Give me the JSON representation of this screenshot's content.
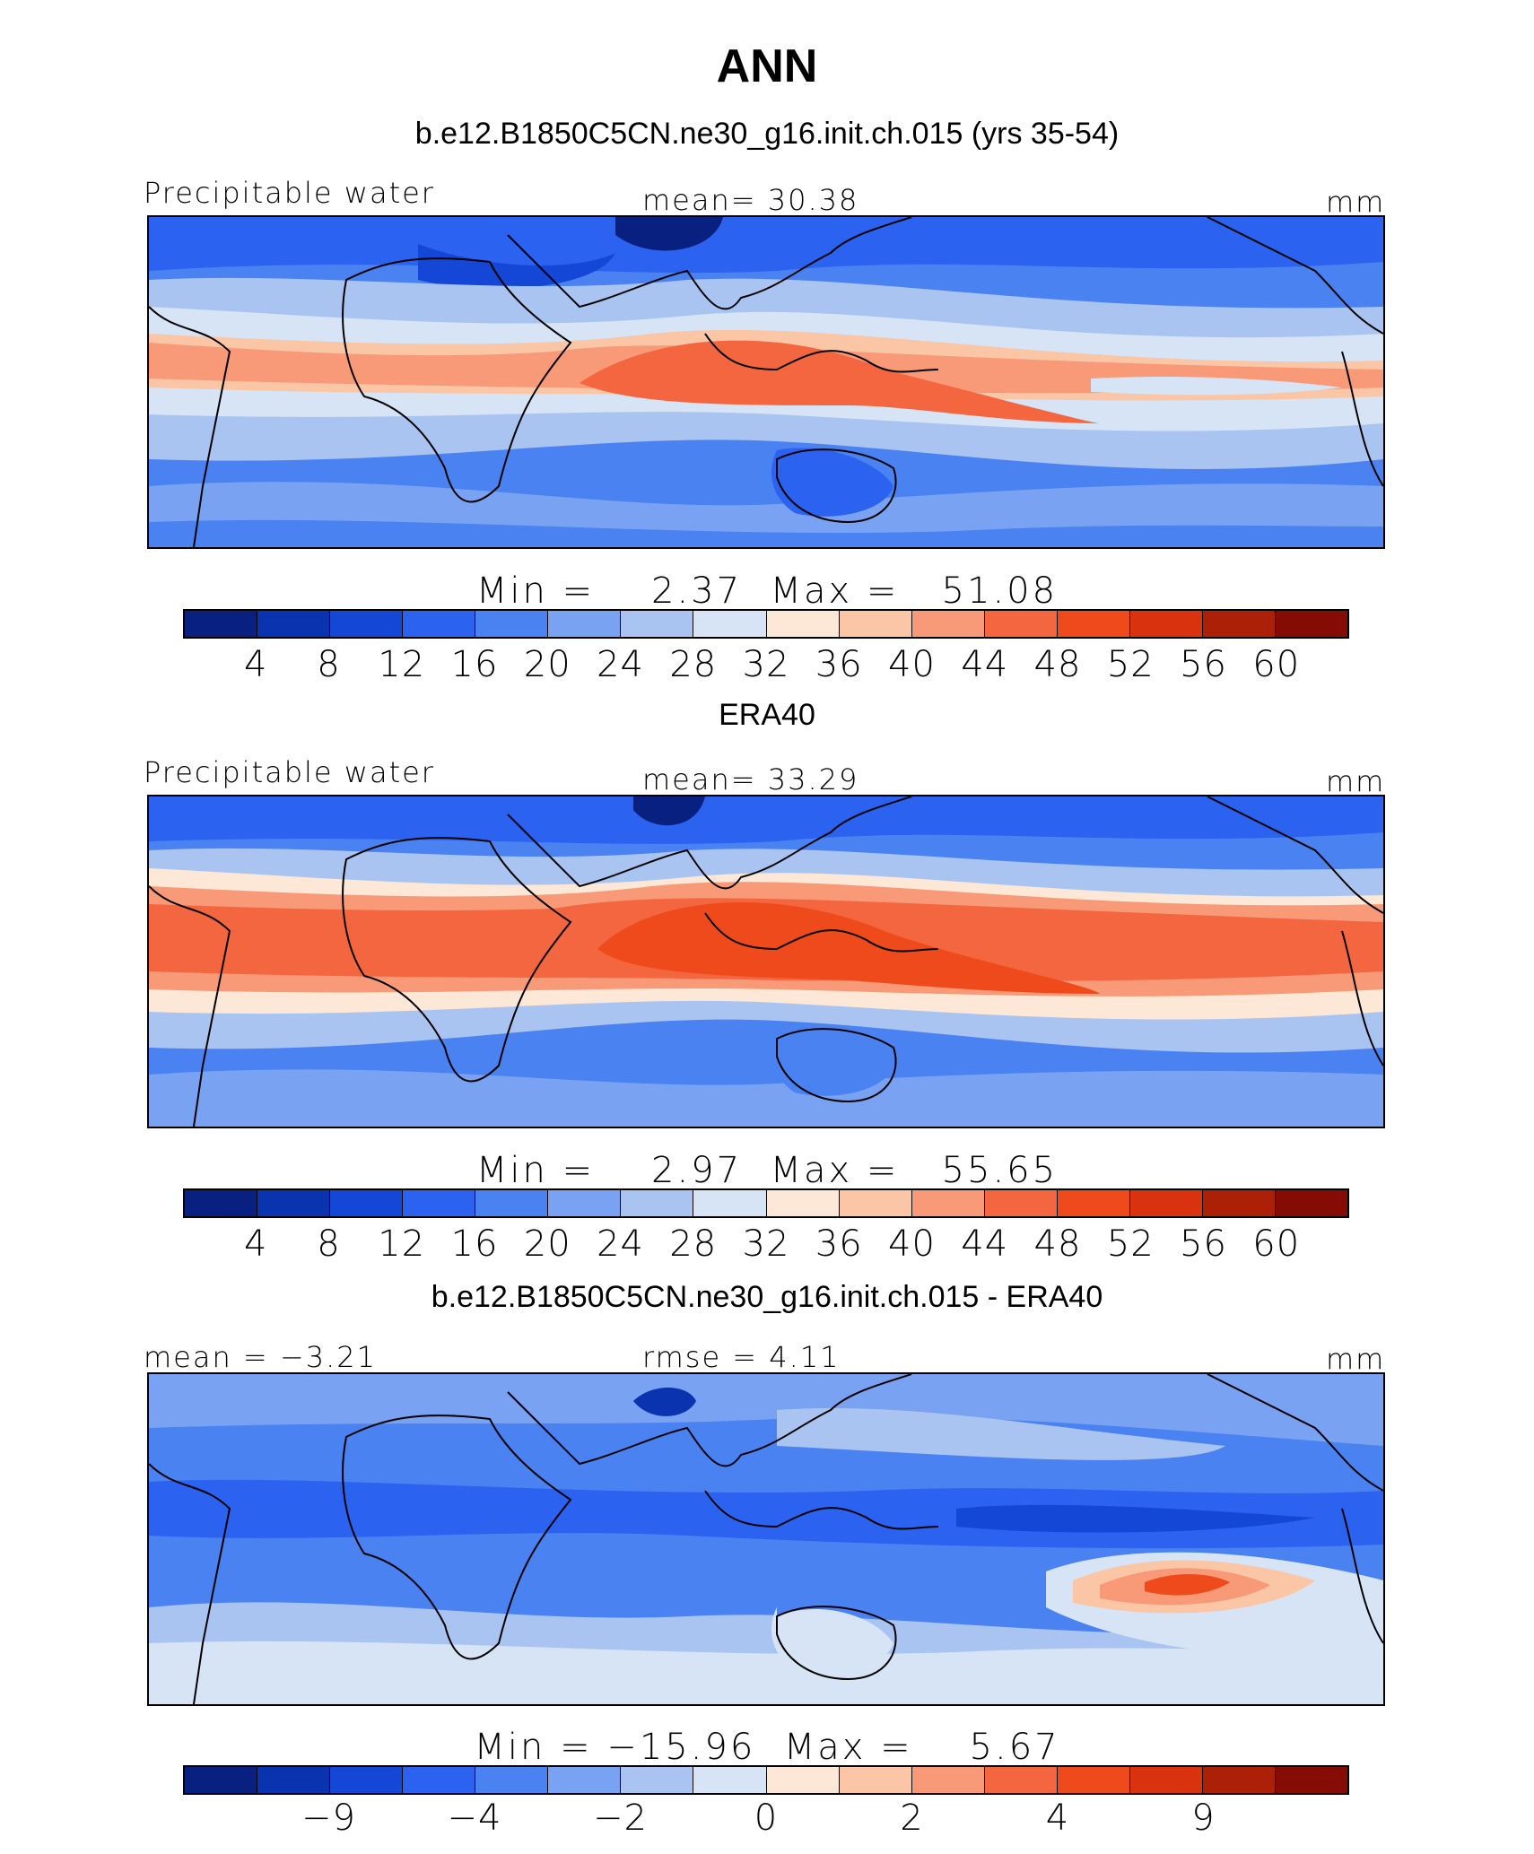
{
  "title": "ANN",
  "colors": [
    "#08207f",
    "#0a33b0",
    "#1547d6",
    "#2b62ef",
    "#4a82f2",
    "#7aa2f2",
    "#aac4f2",
    "#d6e4f6",
    "#fde7d6",
    "#fac6a6",
    "#f89a78",
    "#f3663f",
    "#ef4a1b",
    "#d8320e",
    "#ad2008",
    "#850c04"
  ],
  "panels": [
    {
      "heading": "b.e12.B1850C5CN.ne30_g16.init.ch.015 (yrs 35-54)",
      "left_label": "Precipitable water",
      "center_label": "mean=  30.38",
      "right_label": "mm",
      "minmax": "Min =    2.37  Max =   51.08",
      "ticks": [
        "4",
        "8",
        "12",
        "16",
        "20",
        "24",
        "28",
        "32",
        "36",
        "40",
        "44",
        "48",
        "52",
        "56",
        "60"
      ]
    },
    {
      "heading": "ERA40",
      "left_label": "Precipitable water",
      "center_label": "mean=  33.29",
      "right_label": "mm",
      "minmax": "Min =    2.97  Max =   55.65",
      "ticks": [
        "4",
        "8",
        "12",
        "16",
        "20",
        "24",
        "28",
        "32",
        "36",
        "40",
        "44",
        "48",
        "52",
        "56",
        "60"
      ]
    },
    {
      "heading": "b.e12.B1850C5CN.ne30_g16.init.ch.015 - ERA40",
      "left_label": "mean =  −3.21",
      "center_label": "rmse =    4.11",
      "right_label": "mm",
      "minmax": "Min = −15.96  Max =    5.67",
      "ticks": [
        "−9",
        "−4",
        "−2",
        "0",
        "2",
        "4",
        "9"
      ]
    }
  ]
}
